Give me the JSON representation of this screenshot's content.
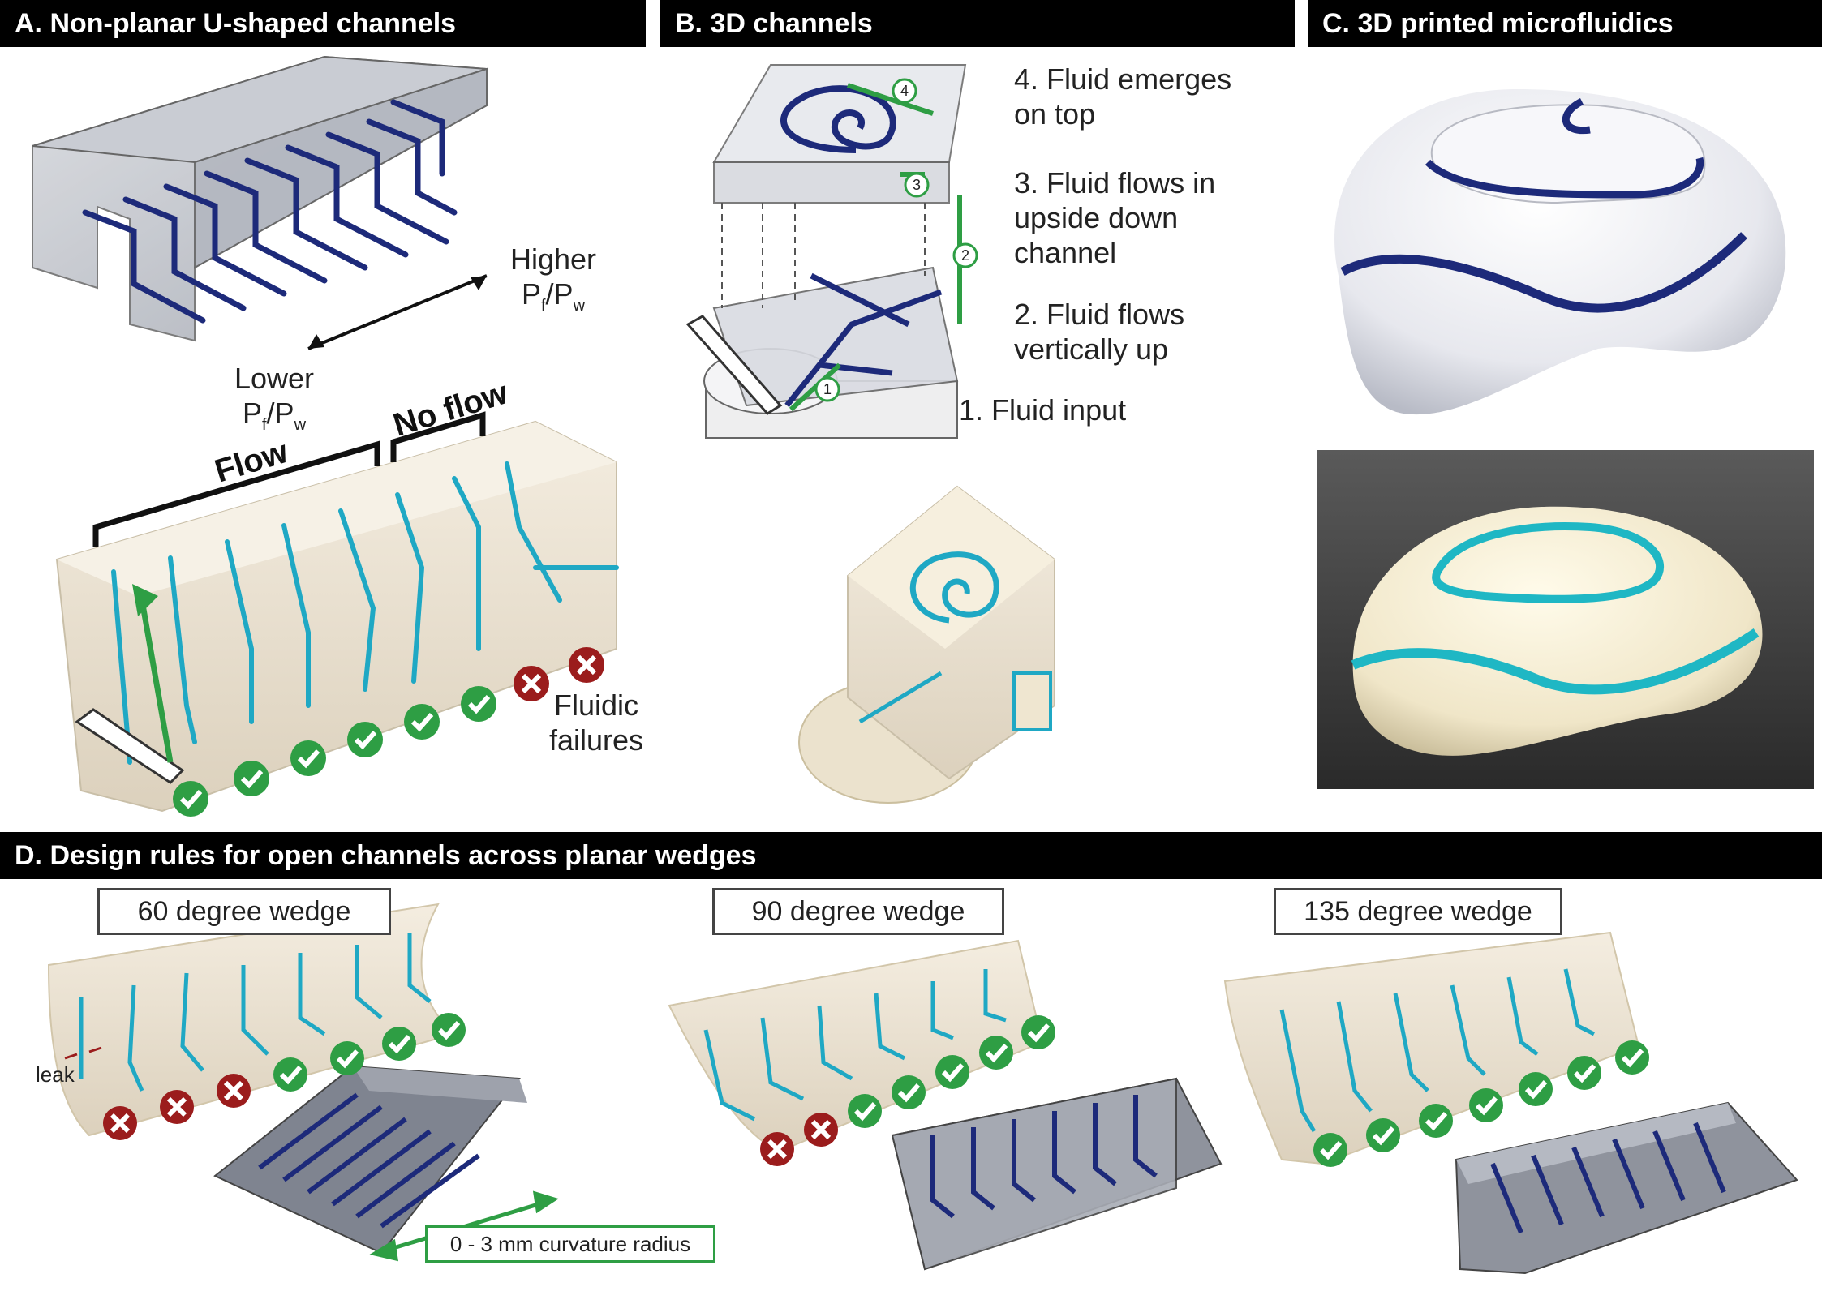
{
  "panels": {
    "a": {
      "title": "A. Non-planar U-shaped channels",
      "higher_line1": "Higher",
      "higher_line2": "P",
      "higher_sub1": "f",
      "higher_mid": "/P",
      "higher_sub2": "w",
      "lower_line1": "Lower",
      "lower_line2": "P",
      "lower_sub1": "f",
      "lower_mid": "/P",
      "lower_sub2": "w",
      "flow_label": "Flow",
      "noflow_label": "No flow",
      "failures_line1": "Fluidic",
      "failures_line2": "failures"
    },
    "b": {
      "title": "B. 3D channels",
      "step4_line1": "4. Fluid emerges",
      "step4_line2": "on top",
      "step3_line1": "3. Fluid flows in",
      "step3_line2": "upside down",
      "step3_line3": "channel",
      "step2_line1": "2. Fluid flows",
      "step2_line2": "vertically up",
      "step1": "1. Fluid input",
      "marker1": "1",
      "marker2": "2",
      "marker3": "3",
      "marker4": "4"
    },
    "c": {
      "title": "C. 3D printed microfluidics"
    },
    "d": {
      "title": "D. Design rules for open channels across planar wedges",
      "wedge60": "60 degree wedge",
      "wedge90": "90 degree wedge",
      "wedge135": "135 degree wedge",
      "leak": "leak",
      "curvature": "0 - 3 mm curvature radius"
    }
  },
  "colors": {
    "header_bg": "#000000",
    "channel_dark": "#1d2a7a",
    "channel_cyan": "#1fa8c4",
    "check_green": "#2e9e44",
    "fail_red": "#9b1c1c",
    "arrow_green": "#2e9e44"
  },
  "icons": [
    "check-icon",
    "cross-icon",
    "double-arrow-icon",
    "green-arrow-icon"
  ]
}
